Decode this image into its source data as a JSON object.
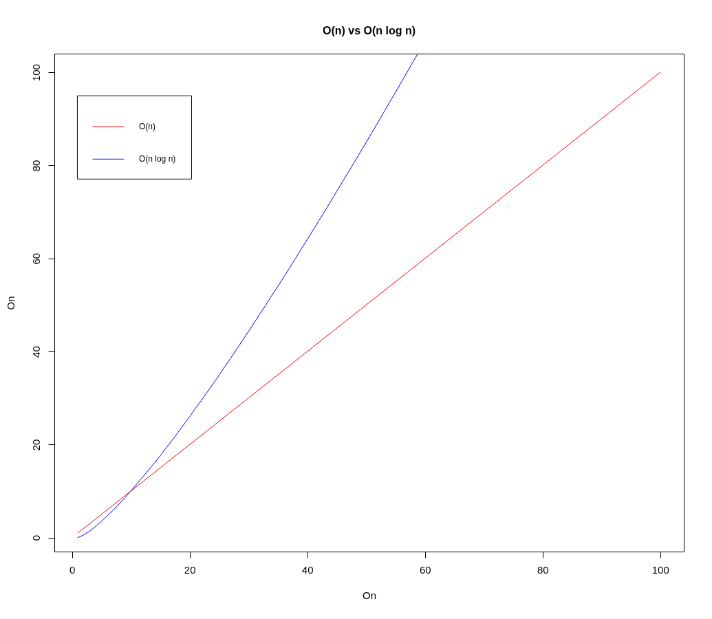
{
  "chart_data": {
    "type": "line",
    "title": "O(n) vs O(n log n)",
    "xlabel": "On",
    "ylabel": "On",
    "xlim": [
      -3,
      104
    ],
    "ylim": [
      -3,
      104
    ],
    "xticks": [
      0,
      20,
      40,
      60,
      80,
      100
    ],
    "yticks": [
      0,
      20,
      40,
      60,
      80,
      100
    ],
    "grid": false,
    "legend": "top left",
    "marker": "none",
    "line_style": "solid",
    "series": [
      {
        "name": "O(n)",
        "color": "#ff0000",
        "x": [
          1,
          100
        ],
        "values": [
          1,
          100
        ]
      },
      {
        "name": "O(n log n)",
        "color": "#0000ff",
        "x": [
          1,
          2,
          3,
          4,
          5,
          6,
          7,
          8,
          9,
          10,
          11,
          12,
          13,
          14,
          15,
          16,
          17,
          18,
          19,
          20,
          21,
          22,
          23,
          24,
          25,
          26,
          27,
          28,
          29,
          30,
          31,
          32,
          33,
          34,
          35,
          36,
          37,
          38,
          39,
          40,
          41,
          42,
          43,
          44,
          45,
          46,
          47,
          48,
          49,
          50,
          51,
          52,
          53,
          54,
          55,
          56,
          57,
          58,
          58.8
        ],
        "values": [
          0,
          0.6,
          1.4,
          2.4,
          3.5,
          4.7,
          5.9,
          7.2,
          8.6,
          10,
          11.5,
          13,
          14.5,
          16,
          17.6,
          19.3,
          20.9,
          22.6,
          24.3,
          26,
          27.8,
          29.5,
          31.3,
          33.1,
          34.9,
          36.8,
          38.6,
          40.5,
          42.4,
          44.3,
          46.2,
          48.2,
          50.1,
          52.1,
          54,
          56,
          58,
          60,
          62.1,
          64.1,
          66.1,
          68.2,
          70.2,
          72.3,
          74.4,
          76.5,
          78.6,
          80.7,
          82.8,
          84.9,
          87.1,
          89.2,
          91.4,
          93.6,
          95.7,
          97.9,
          100.1,
          102.3,
          104
        ]
      }
    ]
  }
}
